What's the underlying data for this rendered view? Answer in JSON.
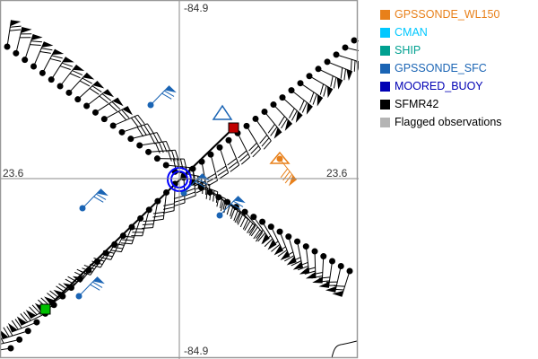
{
  "map": {
    "lon_label_top": "-84.9",
    "lon_label_bottom": "-84.9",
    "lat_label_left": "23.6",
    "lat_label_right": "23.6",
    "border_color": "#999999"
  },
  "legend": [
    {
      "label": "GPSSONDE_WL150",
      "color": "#e8801a"
    },
    {
      "label": "CMAN",
      "color": "#00c8ff"
    },
    {
      "label": "SHIP",
      "color": "#00a090"
    },
    {
      "label": "GPSSONDE_SFC",
      "color": "#1a64b4"
    },
    {
      "label": "MOORED_BUOY",
      "color": "#0000b4",
      "text_color": "#0000b4"
    },
    {
      "label": "SFMR42",
      "color": "#000000"
    },
    {
      "label": "Flagged observations",
      "color": "#b4b4b4",
      "text_color": "#000000"
    }
  ],
  "markers": {
    "start_color": "#00c000",
    "end_color": "#c00000",
    "buoy_color": "#0000ff"
  }
}
